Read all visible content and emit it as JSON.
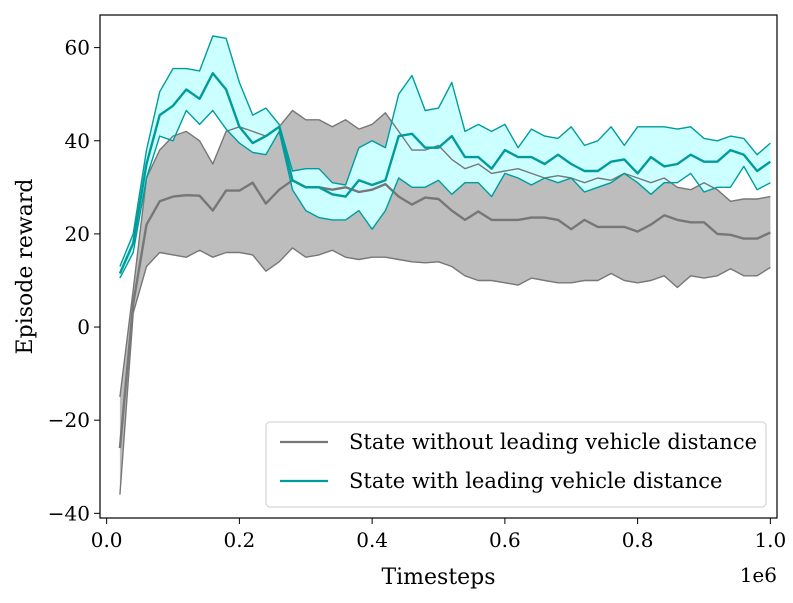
{
  "chart_data": {
    "type": "line",
    "title": "",
    "xlabel": "Timesteps",
    "ylabel": "Episode reward",
    "x_offset_label": "1e6",
    "xlim": [
      -0.01,
      1.01
    ],
    "ylim": [
      -41,
      67
    ],
    "xticks": [
      0.0,
      0.2,
      0.4,
      0.6,
      0.8,
      1.0
    ],
    "xtick_labels": [
      "0.0",
      "0.2",
      "0.4",
      "0.6",
      "0.8",
      "1.0"
    ],
    "yticks": [
      -40,
      -20,
      0,
      20,
      40,
      60
    ],
    "ytick_labels": [
      "−40",
      "−20",
      "0",
      "20",
      "40",
      "60"
    ],
    "grid": false,
    "legend_position": "lower-right",
    "x": [
      0.02,
      0.04,
      0.06,
      0.08,
      0.1,
      0.12,
      0.14,
      0.16,
      0.18,
      0.2,
      0.22,
      0.24,
      0.26,
      0.28,
      0.3,
      0.32,
      0.34,
      0.36,
      0.38,
      0.4,
      0.42,
      0.44,
      0.46,
      0.48,
      0.5,
      0.52,
      0.54,
      0.56,
      0.58,
      0.6,
      0.62,
      0.64,
      0.66,
      0.68,
      0.7,
      0.72,
      0.74,
      0.76,
      0.78,
      0.8,
      0.82,
      0.84,
      0.86,
      0.88,
      0.9,
      0.92,
      0.94,
      0.96,
      0.98,
      1.0
    ],
    "series": [
      {
        "name": "State without leading vehicle distance",
        "color": "#777777",
        "fill_color": "#bdbdbd",
        "mean": [
          -26,
          5,
          22,
          27,
          28,
          28.3,
          28.2,
          25,
          29.3,
          29.3,
          31,
          26.5,
          29.5,
          31.5,
          30,
          30,
          29.5,
          30,
          29,
          29.5,
          30.7,
          28,
          26.3,
          27.8,
          27.5,
          25,
          23,
          24.8,
          23,
          23,
          23,
          23.5,
          23.5,
          23,
          21,
          23,
          21.5,
          21.5,
          21.5,
          20.5,
          22,
          24,
          23,
          22.5,
          22.5,
          20,
          19.8,
          19,
          19,
          20.3
        ],
        "upper": [
          -15,
          8,
          32,
          38,
          41,
          42,
          40,
          35,
          42,
          43,
          42,
          41,
          43,
          46.5,
          44.5,
          44.5,
          43,
          44.5,
          42.5,
          43.5,
          46,
          42,
          38,
          38,
          39,
          36,
          34,
          35,
          33,
          33.5,
          34,
          33,
          32,
          32.5,
          32,
          31,
          32,
          31.5,
          33,
          32,
          31,
          32,
          30,
          29.5,
          31,
          29.5,
          27,
          27.5,
          27.5,
          28
        ],
        "lower": [
          -36,
          3,
          13,
          16,
          15.5,
          15,
          16.5,
          15,
          16,
          16,
          15.5,
          12,
          14,
          17,
          15,
          15.5,
          16.5,
          15,
          14.5,
          15,
          15,
          14.5,
          14,
          13.8,
          14,
          13,
          11,
          10,
          10,
          9.5,
          9,
          10.5,
          10,
          9.5,
          9.5,
          10,
          10,
          11.5,
          10,
          9.5,
          10,
          11,
          8.5,
          11,
          10.5,
          11,
          12.5,
          11,
          11,
          12.8
        ]
      },
      {
        "name": "State with leading vehicle distance",
        "color": "#009c9c",
        "fill_color": "#ccffff",
        "mean": [
          11.5,
          18,
          35,
          45.5,
          47.5,
          51,
          49,
          54.5,
          51,
          43,
          39.5,
          41,
          43,
          31.5,
          30,
          30,
          28.5,
          28,
          31.5,
          30.5,
          31.5,
          41,
          41.5,
          38.5,
          38.5,
          41,
          36.5,
          36.5,
          34,
          38,
          36.5,
          36.5,
          35,
          37,
          35,
          33.5,
          33.5,
          35.5,
          36,
          33,
          36.5,
          34.5,
          35,
          37,
          35.5,
          35.5,
          38,
          37,
          33.5,
          35.5
        ],
        "upper": [
          13,
          20,
          38,
          50.5,
          55.5,
          55.5,
          55,
          62.5,
          62,
          52.5,
          45.5,
          47,
          43.5,
          33.5,
          34,
          34,
          31,
          30.5,
          38.5,
          40,
          38.5,
          50,
          54,
          46.5,
          47,
          52.5,
          42,
          43.5,
          42,
          43.5,
          38.5,
          42.5,
          41,
          40.5,
          43,
          39,
          40,
          43,
          39,
          43,
          43,
          43,
          42.5,
          43,
          40.5,
          40,
          41,
          40.5,
          37,
          39.5
        ],
        "lower": [
          10.5,
          16,
          32,
          41,
          40,
          46.5,
          43.5,
          46.5,
          42.5,
          39.5,
          37.5,
          37,
          42,
          29.5,
          25,
          23.5,
          23,
          23,
          25,
          21,
          25,
          32,
          30,
          30,
          31.5,
          28.5,
          31,
          31,
          28,
          33,
          32,
          30.5,
          32,
          31,
          32,
          29,
          30,
          31,
          33,
          31,
          28.5,
          31,
          31,
          33,
          29,
          30,
          30,
          34.5,
          29.5,
          31
        ]
      }
    ]
  }
}
